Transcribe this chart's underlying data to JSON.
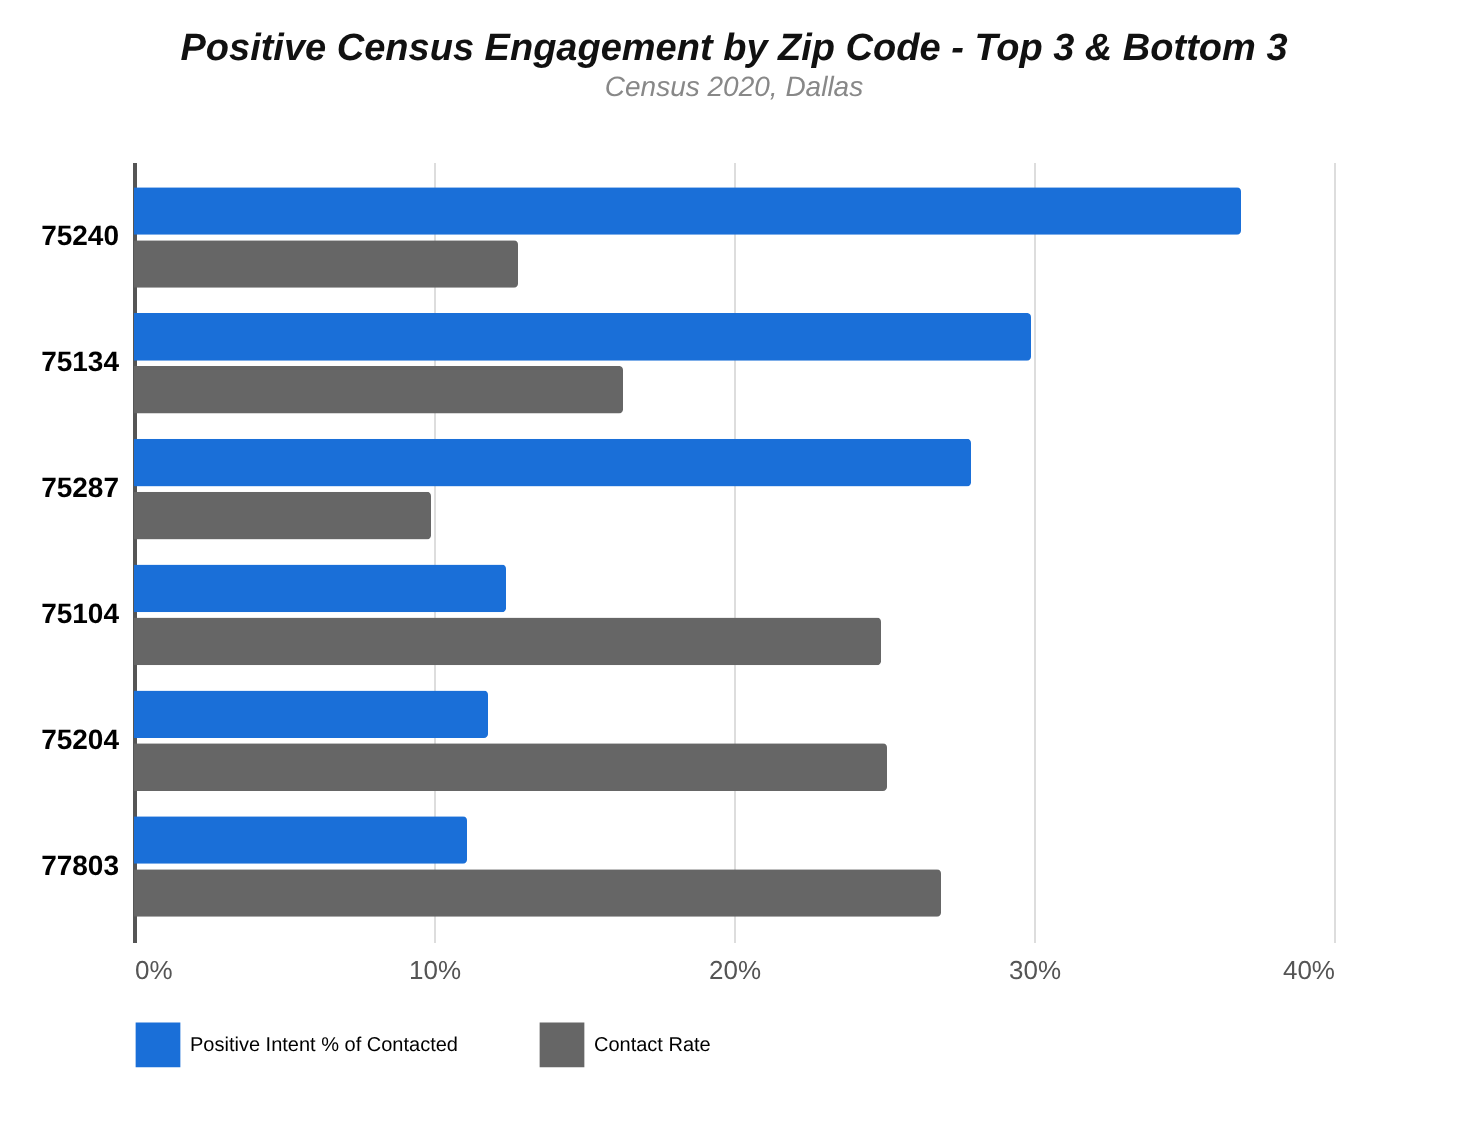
{
  "chart_data": {
    "type": "bar",
    "orientation": "horizontal",
    "title": "Positive Census Engagement by Zip Code - Top 3 & Bottom 3",
    "subtitle": "Census 2020, Dallas",
    "categories": [
      "75240",
      "75134",
      "75287",
      "75104",
      "75204",
      "77803"
    ],
    "series": [
      {
        "name": "Positive Intent % of Contacted",
        "color": "#1a6fd8",
        "values": [
          36.9,
          29.9,
          27.9,
          12.4,
          11.8,
          11.1
        ]
      },
      {
        "name": "Contact Rate",
        "color": "#666666",
        "values": [
          12.8,
          16.3,
          9.9,
          24.9,
          25.1,
          26.9
        ]
      }
    ],
    "xlim": [
      0,
      40
    ],
    "xticks": [
      {
        "value": 0,
        "label": "0%"
      },
      {
        "value": 10,
        "label": "10%"
      },
      {
        "value": 20,
        "label": "20%"
      },
      {
        "value": 30,
        "label": "30%"
      },
      {
        "value": 40,
        "label": "40%"
      }
    ],
    "grid": "x",
    "legend": "bottom"
  }
}
